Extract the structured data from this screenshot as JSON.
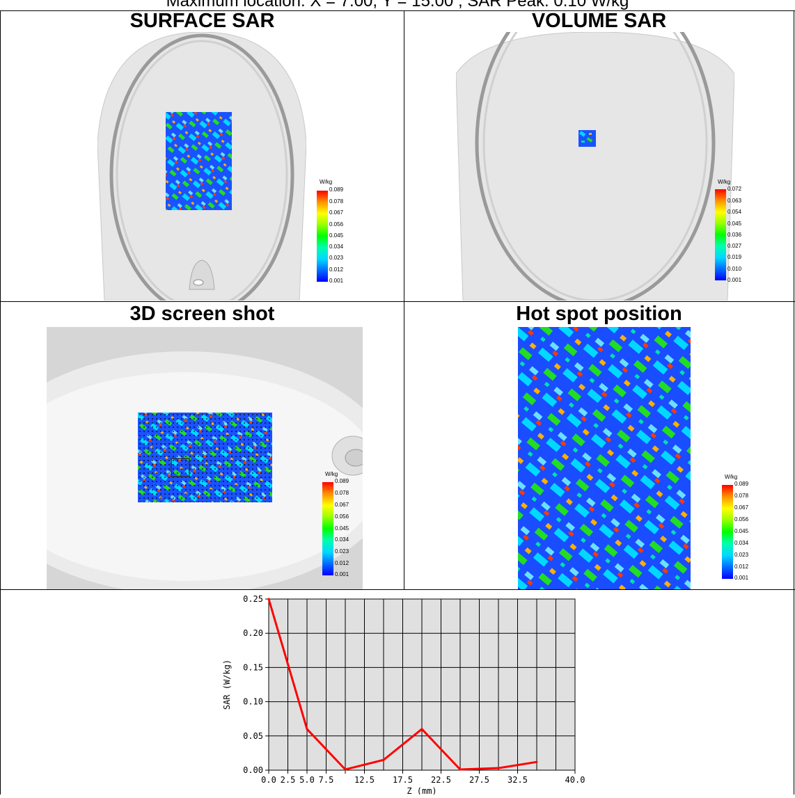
{
  "caption": "Maximum location: X = 7.00, Y = 15.00 ; SAR Peak: 0.10 W/kg",
  "cells": {
    "surface_title": "SURFACE SAR",
    "volume_title": "VOLUME SAR",
    "screenshot_title": "3D screen shot",
    "hotspot_title": "Hot spot position"
  },
  "legends": {
    "surface": {
      "unit": "W/kg",
      "ticks": [
        "0.089",
        "0.078",
        "0.067",
        "0.056",
        "0.045",
        "0.034",
        "0.023",
        "0.012",
        "0.001"
      ]
    },
    "volume": {
      "unit": "W/kg",
      "ticks": [
        "0.072",
        "0.063",
        "0.054",
        "0.045",
        "0.036",
        "0.027",
        "0.019",
        "0.010",
        "0.001"
      ]
    },
    "screenshot": {
      "unit": "W/kg",
      "ticks": [
        "0.089",
        "0.078",
        "0.067",
        "0.056",
        "0.045",
        "0.034",
        "0.023",
        "0.012",
        "0.001"
      ]
    },
    "hotspot": {
      "unit": "W/kg",
      "ticks": [
        "0.089",
        "0.078",
        "0.067",
        "0.056",
        "0.045",
        "0.034",
        "0.023",
        "0.012",
        "0.001"
      ]
    }
  },
  "colors": {
    "line": "#ff0000",
    "plot_bg": "#e0e0e0",
    "phantom": "#e6e6e6"
  },
  "chart_data": {
    "type": "line",
    "xlabel": "Z (mm)",
    "ylabel": "SAR (W/kg)",
    "xlim": [
      0,
      40
    ],
    "ylim": [
      0,
      0.25
    ],
    "grid": true,
    "x_ticks": [
      "0.0",
      "2.5",
      "5.0",
      "7.5",
      "",
      "12.5",
      "17.5",
      "22.5",
      "27.5",
      "32.5",
      "40.0"
    ],
    "x_tick_values": [
      0,
      2.5,
      5,
      7.5,
      10,
      12.5,
      17.5,
      22.5,
      27.5,
      32.5,
      40
    ],
    "y_ticks": [
      "0.25",
      "0.20",
      "0.15",
      "0.10",
      "0.05",
      "0.00"
    ],
    "y_tick_values": [
      0.25,
      0.2,
      0.15,
      0.1,
      0.05,
      0.0
    ],
    "series": [
      {
        "x": [
          0,
          5,
          10,
          15,
          20,
          25,
          30,
          35
        ],
        "y": [
          0.25,
          0.06,
          0.001,
          0.015,
          0.06,
          0.001,
          0.003,
          0.012
        ]
      }
    ]
  }
}
